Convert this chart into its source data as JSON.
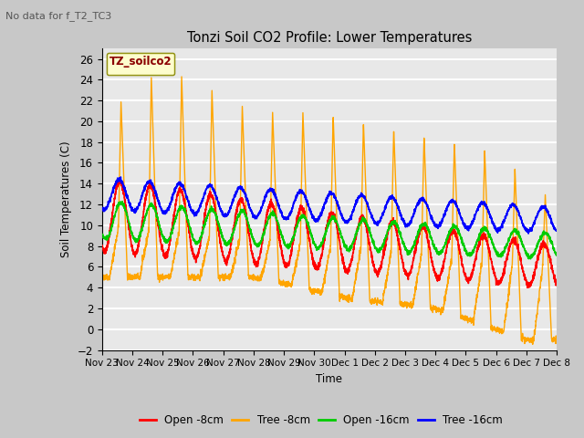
{
  "title": "Tonzi Soil CO2 Profile: Lower Temperatures",
  "subtitle": "No data for f_T2_TC3",
  "xlabel": "Time",
  "ylabel": "Soil Temperatures (C)",
  "ylim": [
    -2,
    27
  ],
  "yticks": [
    -2,
    0,
    2,
    4,
    6,
    8,
    10,
    12,
    14,
    16,
    18,
    20,
    22,
    24,
    26
  ],
  "legend_label": "TZ_soilco2",
  "legend_entries": [
    "Open -8cm",
    "Tree -8cm",
    "Open -16cm",
    "Tree -16cm"
  ],
  "legend_colors": [
    "#ff0000",
    "#ffa500",
    "#00cc00",
    "#0000ff"
  ],
  "xtick_labels": [
    "Nov 23",
    "Nov 24",
    "Nov 25",
    "Nov 26",
    "Nov 27",
    "Nov 28",
    "Nov 29",
    "Nov 30",
    "Dec 1",
    "Dec 2",
    "Dec 3",
    "Dec 4",
    "Dec 5",
    "Dec 6",
    "Dec 7",
    "Dec 8"
  ],
  "fig_bg": "#c8c8c8",
  "plot_bg": "#e8e8e8"
}
